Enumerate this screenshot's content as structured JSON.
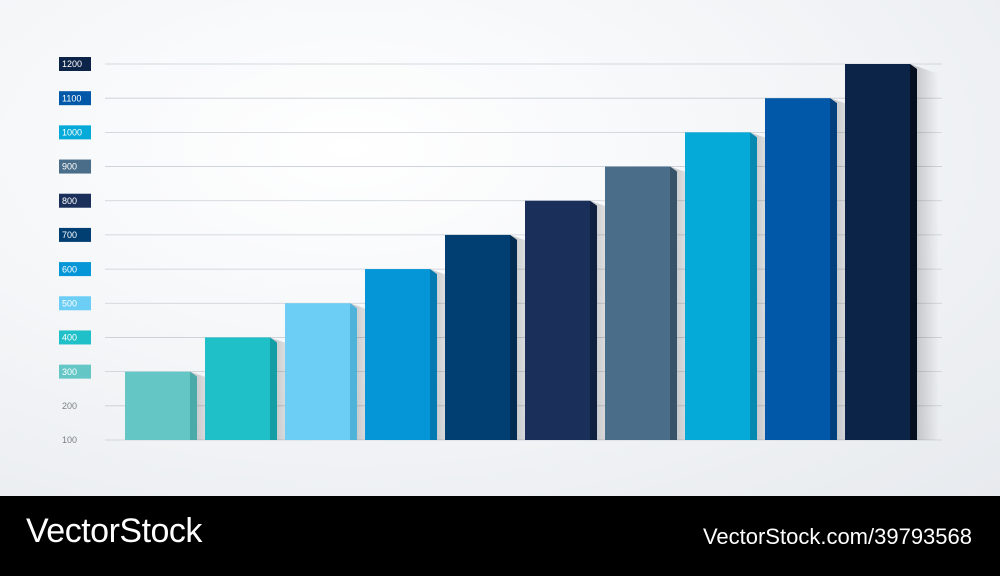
{
  "chart_data": {
    "type": "bar",
    "categories": [
      "",
      "",
      "",
      "",
      "",
      "",
      "",
      "",
      "",
      ""
    ],
    "values": [
      300,
      400,
      500,
      600,
      700,
      800,
      900,
      1000,
      1100,
      1200
    ],
    "ylim": [
      100,
      1200
    ],
    "yticks": [
      {
        "label": "1200",
        "value": 1200,
        "bg": "#0d2449"
      },
      {
        "label": "1100",
        "value": 1100,
        "bg": "#0158a8"
      },
      {
        "label": "1000",
        "value": 1000,
        "bg": "#06aad8"
      },
      {
        "label": "900",
        "value": 900,
        "bg": "#4a6e8a"
      },
      {
        "label": "800",
        "value": 800,
        "bg": "#1a305a"
      },
      {
        "label": "700",
        "value": 700,
        "bg": "#013f73"
      },
      {
        "label": "600",
        "value": 600,
        "bg": "#0596d8"
      },
      {
        "label": "500",
        "value": 500,
        "bg": "#6ccef5"
      },
      {
        "label": "400",
        "value": 400,
        "bg": "#20c0c8"
      },
      {
        "label": "300",
        "value": 300,
        "bg": "#65c6c6"
      },
      {
        "label": "200",
        "value": 200,
        "bg": ""
      },
      {
        "label": "100",
        "value": 100,
        "bg": ""
      }
    ],
    "grid": true,
    "legend": "none",
    "colors": [
      "#65c6c6",
      "#20c0c8",
      "#6ccef5",
      "#0596d8",
      "#013f73",
      "#1a305a",
      "#4a6e8a",
      "#06aad8",
      "#0158a8",
      "#0d2449"
    ],
    "side_colors": [
      "#4aa9a9",
      "#139ea6",
      "#4fb2d9",
      "#047ab2",
      "#002c52",
      "#10203f",
      "#365369",
      "#0589b0",
      "#013f7d",
      "#050f20"
    ]
  },
  "watermark": {
    "left_text": "VectorStock",
    "right_text": "VectorStock.com/39793568"
  }
}
